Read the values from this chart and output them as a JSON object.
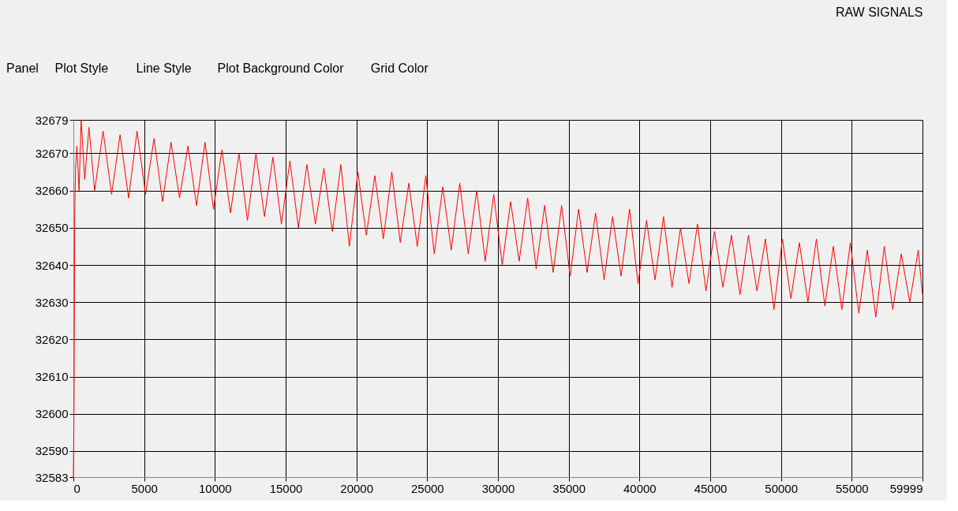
{
  "chart_data": {
    "type": "line",
    "title": "RAW SIGNALS",
    "annotations": [
      "Panel",
      "Plot Style",
      "Line Style",
      "Plot Background Color",
      "Grid Color"
    ],
    "xlim": [
      0,
      59999
    ],
    "xticks": [
      0,
      5000,
      10000,
      15000,
      20000,
      25000,
      30000,
      35000,
      40000,
      45000,
      50000,
      55000,
      59999
    ],
    "ylim": [
      32583,
      32679
    ],
    "yticks": [
      32583,
      32590,
      32600,
      32610,
      32620,
      32630,
      32640,
      32650,
      32660,
      32670,
      32679
    ],
    "grid": true,
    "marker": "none",
    "line_style": "solid",
    "series": [
      {
        "color": "#ff0000",
        "x": [
          0,
          40,
          60,
          100,
          150,
          250,
          400,
          550,
          800,
          1100,
          1500,
          2100,
          2700,
          3300,
          3900,
          4500,
          5100,
          5700,
          6300,
          6900,
          7500,
          8100,
          8700,
          9300,
          9900,
          10500,
          11100,
          11700,
          12300,
          12900,
          13500,
          14100,
          14700,
          15300,
          15900,
          16500,
          17100,
          17700,
          18300,
          18900,
          19500,
          20100,
          20700,
          21300,
          21900,
          22500,
          23100,
          23700,
          24300,
          24900,
          25500,
          26100,
          26700,
          27300,
          27900,
          28500,
          29100,
          29700,
          30300,
          30900,
          31500,
          32100,
          32700,
          33300,
          33900,
          34500,
          35100,
          35700,
          36300,
          36900,
          37500,
          38100,
          38700,
          39300,
          39900,
          40500,
          41100,
          41700,
          42300,
          42900,
          43500,
          44100,
          44700,
          45300,
          45900,
          46500,
          47100,
          47700,
          48300,
          48900,
          49500,
          50100,
          50700,
          51300,
          51900,
          52500,
          53100,
          53700,
          54300,
          54900,
          55500,
          56100,
          56700,
          57300,
          57900,
          58500,
          59100,
          59700,
          59999
        ],
        "values": [
          32583,
          32600,
          32617,
          32655,
          32666,
          32672,
          32660,
          32679,
          32663,
          32677,
          32660,
          32676,
          32659,
          32675,
          32658,
          32676,
          32659,
          32674,
          32657,
          32673,
          32658,
          32672,
          32656,
          32673,
          32655,
          32671,
          32654,
          32670,
          32652,
          32670,
          32653,
          32669,
          32651,
          32668,
          32650,
          32667,
          32651,
          32666,
          32649,
          32667,
          32645,
          32665,
          32648,
          32664,
          32647,
          32665,
          32646,
          32662,
          32645,
          32664,
          32643,
          32661,
          32644,
          32662,
          32643,
          32660,
          32641,
          32659,
          32640,
          32657,
          32641,
          32658,
          32639,
          32656,
          32638,
          32656,
          32637,
          32655,
          32638,
          32654,
          32636,
          32653,
          32637,
          32655,
          32635,
          32652,
          32636,
          32653,
          32634,
          32650,
          32635,
          32651,
          32633,
          32649,
          32634,
          32648,
          32632,
          32648,
          32633,
          32647,
          32628,
          32647,
          32631,
          32646,
          32630,
          32647,
          32629,
          32645,
          32628,
          32646,
          32627,
          32644,
          32626,
          32645,
          32628,
          32643,
          32630,
          32644,
          32632
        ]
      }
    ]
  }
}
